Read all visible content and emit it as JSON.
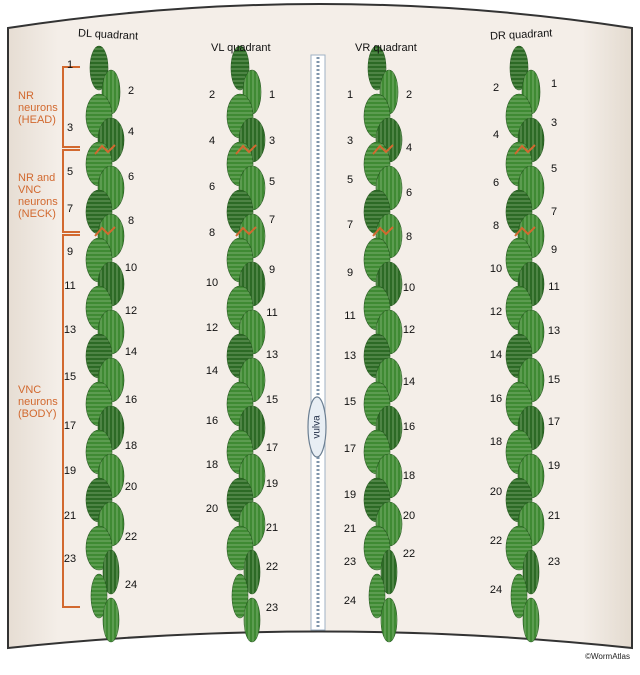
{
  "quadrants": {
    "dl": "DL quadrant",
    "vl": "VL quadrant",
    "vr": "VR quadrant",
    "dr": "DR quadrant"
  },
  "regions": {
    "head": "NR\nneurons\n(HEAD)",
    "neck": "NR and\nVNC\nneurons\n(NECK)",
    "body": "VNC\nneurons\n(BODY)"
  },
  "vulva": "vulva",
  "credit": "©WormAtlas",
  "columns": {
    "dl": {
      "left": [
        "1",
        "3",
        "5",
        "7",
        "9",
        "11",
        "13",
        "15",
        "17",
        "19",
        "21",
        "23"
      ],
      "right": [
        "2",
        "4",
        "6",
        "8",
        "10",
        "12",
        "14",
        "16",
        "18",
        "20",
        "22",
        "24"
      ]
    },
    "vl": {
      "left": [
        "2",
        "4",
        "6",
        "8",
        "10",
        "12",
        "14",
        "16",
        "18",
        "20"
      ],
      "right": [
        "1",
        "3",
        "5",
        "7",
        "9",
        "11",
        "13",
        "15",
        "17",
        "19",
        "21",
        "22",
        "23"
      ]
    },
    "vr": {
      "left": [
        "1",
        "3",
        "5",
        "7",
        "9",
        "11",
        "13",
        "15",
        "17",
        "19",
        "21",
        "23",
        "24"
      ],
      "right": [
        "2",
        "4",
        "6",
        "8",
        "10",
        "12",
        "14",
        "16",
        "18",
        "20",
        "22"
      ]
    },
    "dr": {
      "left": [
        "2",
        "4",
        "6",
        "8",
        "10",
        "12",
        "14",
        "16",
        "18",
        "20",
        "22",
        "24"
      ],
      "right": [
        "1",
        "3",
        "5",
        "7",
        "9",
        "11",
        "13",
        "15",
        "17",
        "19",
        "21",
        "23"
      ]
    }
  },
  "colors": {
    "panel": "#f3ede6",
    "muscle": "#3f8a33",
    "muscle_dark": "#2c6a25",
    "bracket": "#d2692f",
    "divider": "#9fb2c4"
  }
}
